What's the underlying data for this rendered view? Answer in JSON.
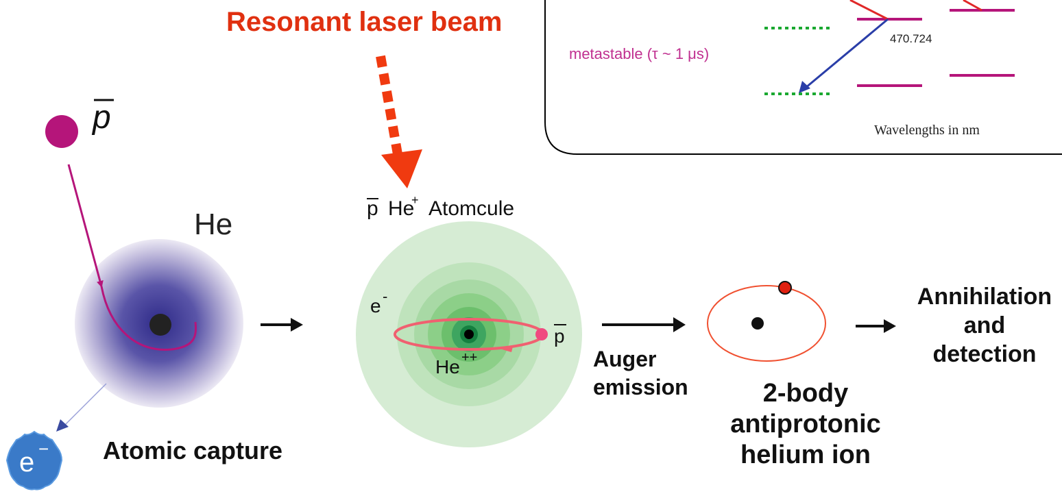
{
  "laser_label": "Resonant laser beam",
  "inset": {
    "state_label": "metastable (τ ~ 1 μs)",
    "wavelength": "470.724",
    "note": "Wavelengths in nm"
  },
  "capture": {
    "antiproton": "p",
    "atom": "He",
    "electron": {
      "base": "e",
      "charge": "−"
    },
    "caption": "Atomic capture"
  },
  "atomcule": {
    "label": {
      "antiproton": "p",
      "atom": "He",
      "charge": "+",
      "name": "Atomcule"
    },
    "electron": {
      "base": "e",
      "charge": "-"
    },
    "antiproton": "p",
    "nucleus": {
      "base": "He",
      "charge": "++"
    }
  },
  "auger": [
    "Auger",
    "emission"
  ],
  "ion": [
    "2-body",
    "antiprotonic",
    "helium ion"
  ],
  "annihilation": [
    "Annihilation",
    "and",
    "detection"
  ]
}
